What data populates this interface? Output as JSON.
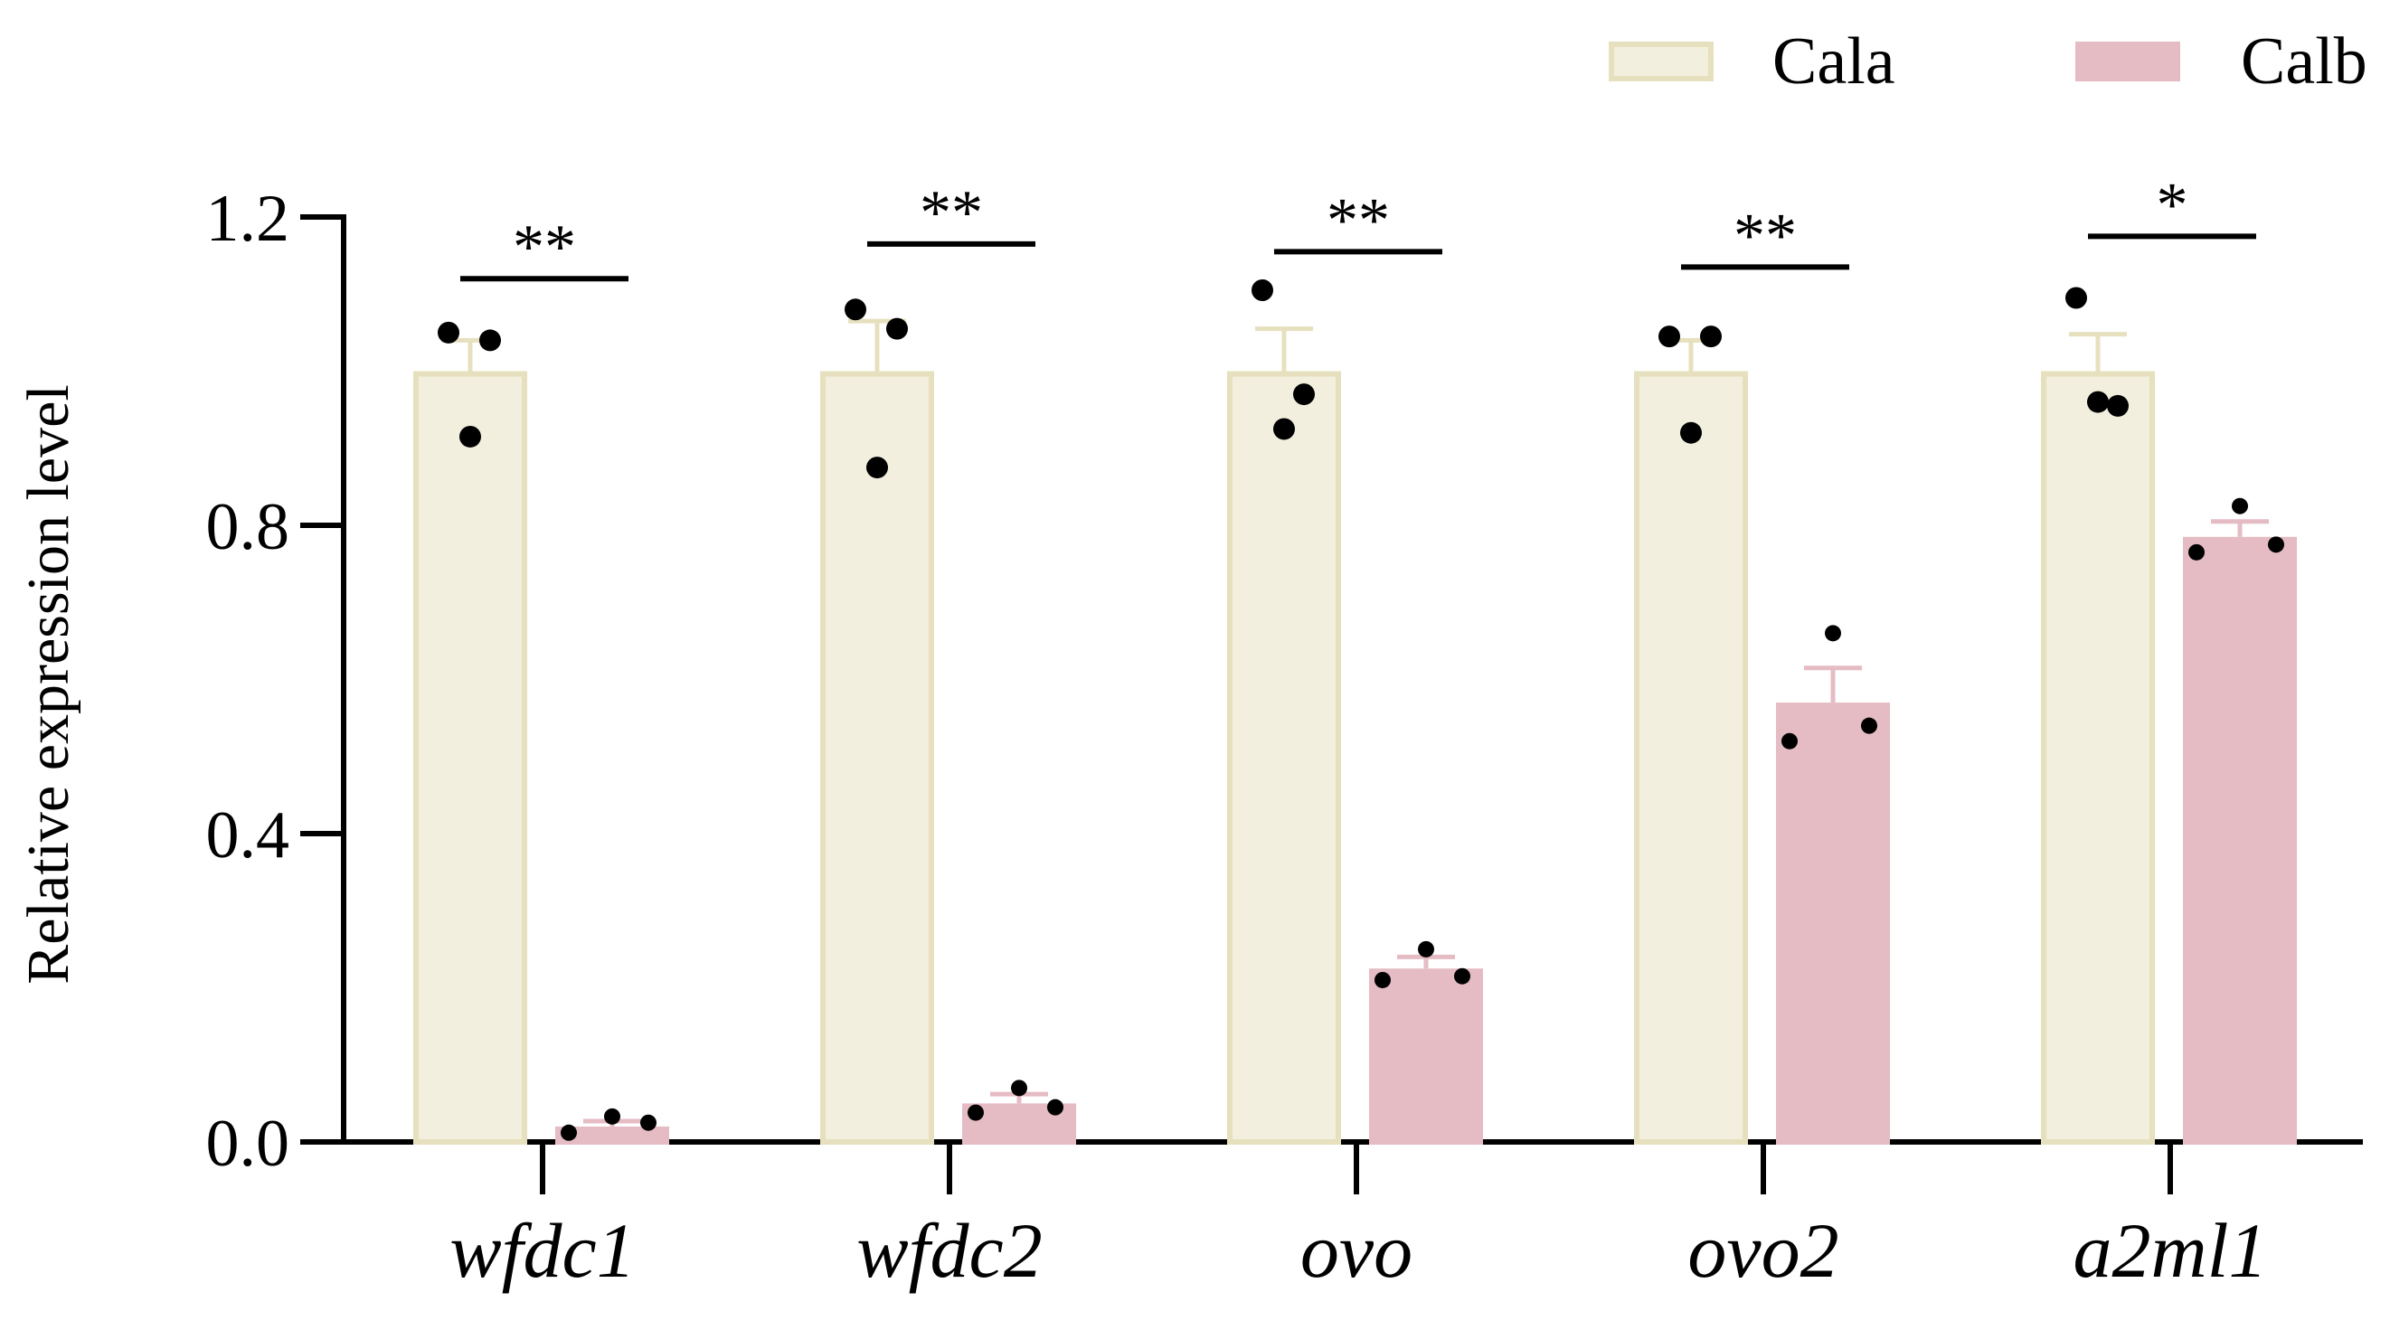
{
  "chart_data": {
    "type": "bar",
    "title": "",
    "xlabel": "",
    "ylabel": "Relative expression level",
    "ylim": [
      0,
      1.2
    ],
    "yticks": [
      "0.0",
      "0.4",
      "0.8",
      "1.2"
    ],
    "ytick_values": [
      0,
      0.4,
      0.8,
      1.2
    ],
    "categories": [
      "wfdc1",
      "wfdc2",
      "ovo",
      "ovo2",
      "a2ml1"
    ],
    "legend_position": "top-right",
    "colors": {
      "Cala_fill": "#f2efdf",
      "Cala_stroke": "#e6e0bf",
      "Calb_fill": "#e6bcc4",
      "Calb_stroke": "#e6bcc4",
      "axis": "#000000",
      "dots": "#000000"
    },
    "series": [
      {
        "name": "Cala",
        "values": [
          1.0,
          1.0,
          1.0,
          1.0,
          1.0
        ],
        "errors": [
          0.04,
          0.065,
          0.055,
          0.04,
          0.048
        ],
        "points": [
          [
            1.05,
            1.04,
            0.915
          ],
          [
            1.08,
            1.055,
            0.875
          ],
          [
            1.105,
            0.97,
            0.925
          ],
          [
            1.045,
            1.045,
            0.92
          ],
          [
            1.095,
            0.955,
            0.96
          ]
        ]
      },
      {
        "name": "Calb",
        "values": [
          0.02,
          0.05,
          0.225,
          0.57,
          0.785
        ],
        "errors": [
          0.007,
          0.012,
          0.015,
          0.045,
          0.02
        ],
        "points": [
          [
            0.012,
            0.033,
            0.025
          ],
          [
            0.038,
            0.07,
            0.045
          ],
          [
            0.21,
            0.25,
            0.215
          ],
          [
            0.52,
            0.66,
            0.54
          ],
          [
            0.765,
            0.825,
            0.775
          ]
        ]
      }
    ],
    "significance": [
      {
        "label": "**",
        "line_value": 1.12
      },
      {
        "label": "**",
        "line_value": 1.165
      },
      {
        "label": "**",
        "line_value": 1.155
      },
      {
        "label": "**",
        "line_value": 1.135
      },
      {
        "label": "*",
        "line_value": 1.175
      }
    ]
  }
}
